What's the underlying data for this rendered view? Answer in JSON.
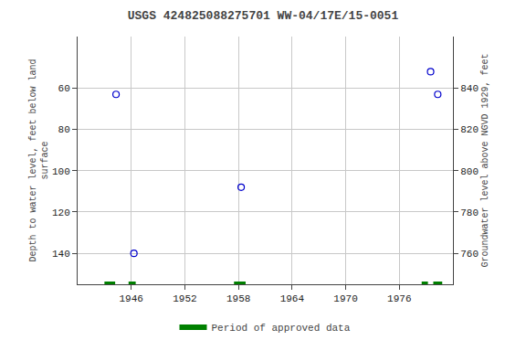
{
  "chart_data": {
    "type": "scatter",
    "title": "USGS 424825088275701 WW-04/17E/15-0051",
    "x": [
      1944.3,
      1946.3,
      1958.3,
      1979.5,
      1980.3
    ],
    "values": [
      63,
      140,
      108,
      52,
      63
    ],
    "color": "#0000cc",
    "marker": "circle-open",
    "xlim": [
      1940,
      1982
    ],
    "xticks": [
      1946,
      1952,
      1958,
      1964,
      1970,
      1976
    ],
    "ylim": [
      155,
      35
    ],
    "yticks": [
      60,
      80,
      100,
      120,
      140
    ],
    "y2lim": [
      745,
      865
    ],
    "y2ticks": [
      760,
      780,
      800,
      820,
      840
    ],
    "ylabel": "Depth to water level, feet below land\nsurface",
    "y2label": "Groundwater level above NGVD 1929, feet",
    "periods": {
      "name": "Period of approved data",
      "color": "#008000",
      "segments": [
        [
          1943.0,
          1944.2
        ],
        [
          1945.7,
          1946.5
        ],
        [
          1957.5,
          1958.8
        ],
        [
          1978.5,
          1979.2
        ],
        [
          1979.8,
          1980.8
        ]
      ]
    },
    "grid": true,
    "legend": "bottom"
  }
}
